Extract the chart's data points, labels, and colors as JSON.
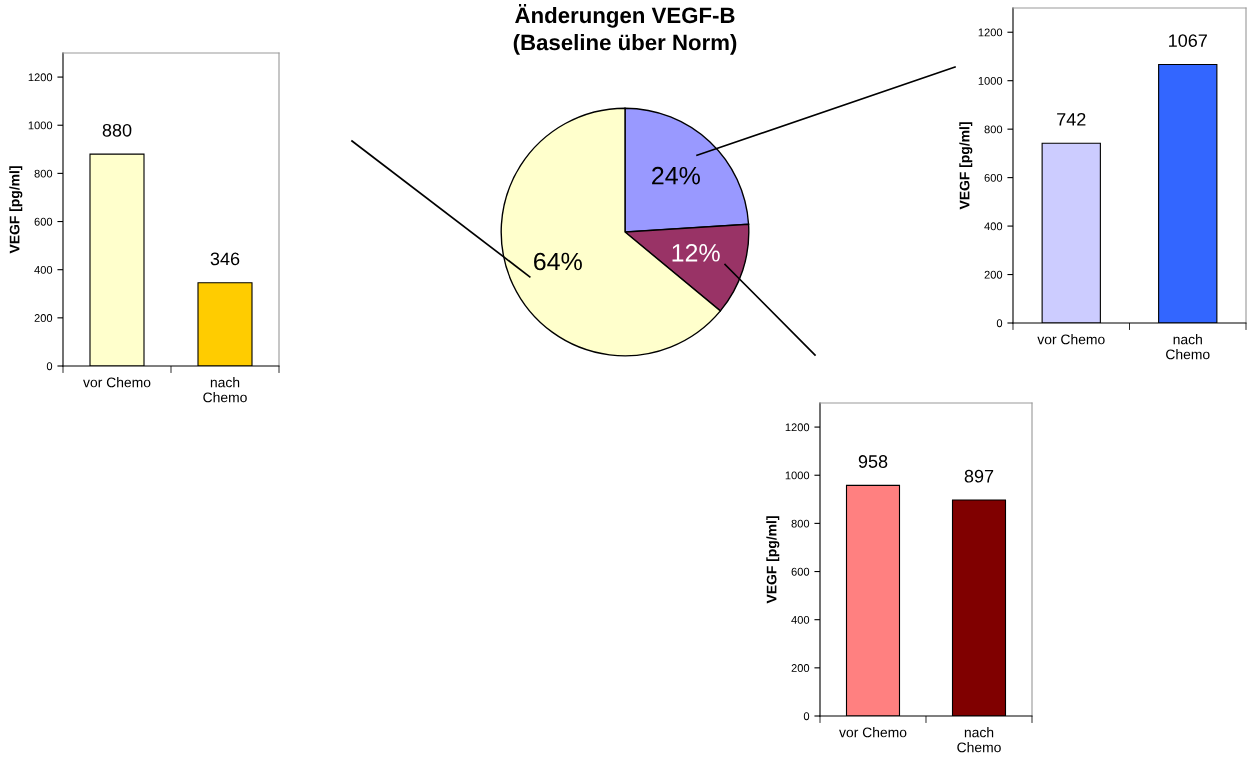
{
  "chart_data": [
    {
      "type": "bar",
      "categories": [
        "vor Chemo",
        "nach\nChemo"
      ],
      "values": [
        880,
        346
      ],
      "colors": [
        "#ffffcc",
        "#ffcc00"
      ],
      "ylabel": "VEGF [pg/ml]",
      "ylim": [
        0,
        1300
      ],
      "yticks": [
        0,
        200,
        400,
        600,
        800,
        1000,
        1200
      ],
      "data_labels": true
    },
    {
      "type": "pie",
      "title": "Änderungen VEGF-B",
      "subtitle": "(Baseline über Norm)",
      "categories": [
        null,
        null,
        null
      ],
      "values": [
        24,
        12,
        64
      ],
      "colors": [
        "#9999ff",
        "#993366",
        "#ffffcc"
      ],
      "value_labels": [
        "24%",
        "12%",
        "64%"
      ]
    },
    {
      "type": "bar",
      "categories": [
        "vor Chemo",
        "nach\nChemo"
      ],
      "values": [
        742,
        1067
      ],
      "colors": [
        "#ccccff",
        "#3366ff"
      ],
      "ylabel": "VEGF [pg/ml]",
      "ylim": [
        0,
        1300
      ],
      "yticks": [
        0,
        200,
        400,
        600,
        800,
        1000,
        1200
      ],
      "data_labels": true
    },
    {
      "type": "bar",
      "categories": [
        "vor Chemo",
        "nach\nChemo"
      ],
      "values": [
        958,
        897
      ],
      "colors": [
        "#ff8080",
        "#800000"
      ],
      "ylabel": "VEGF [pg/ml]",
      "ylim": [
        0,
        1300
      ],
      "yticks": [
        0,
        200,
        400,
        600,
        800,
        1000,
        1200
      ],
      "data_labels": true
    }
  ]
}
